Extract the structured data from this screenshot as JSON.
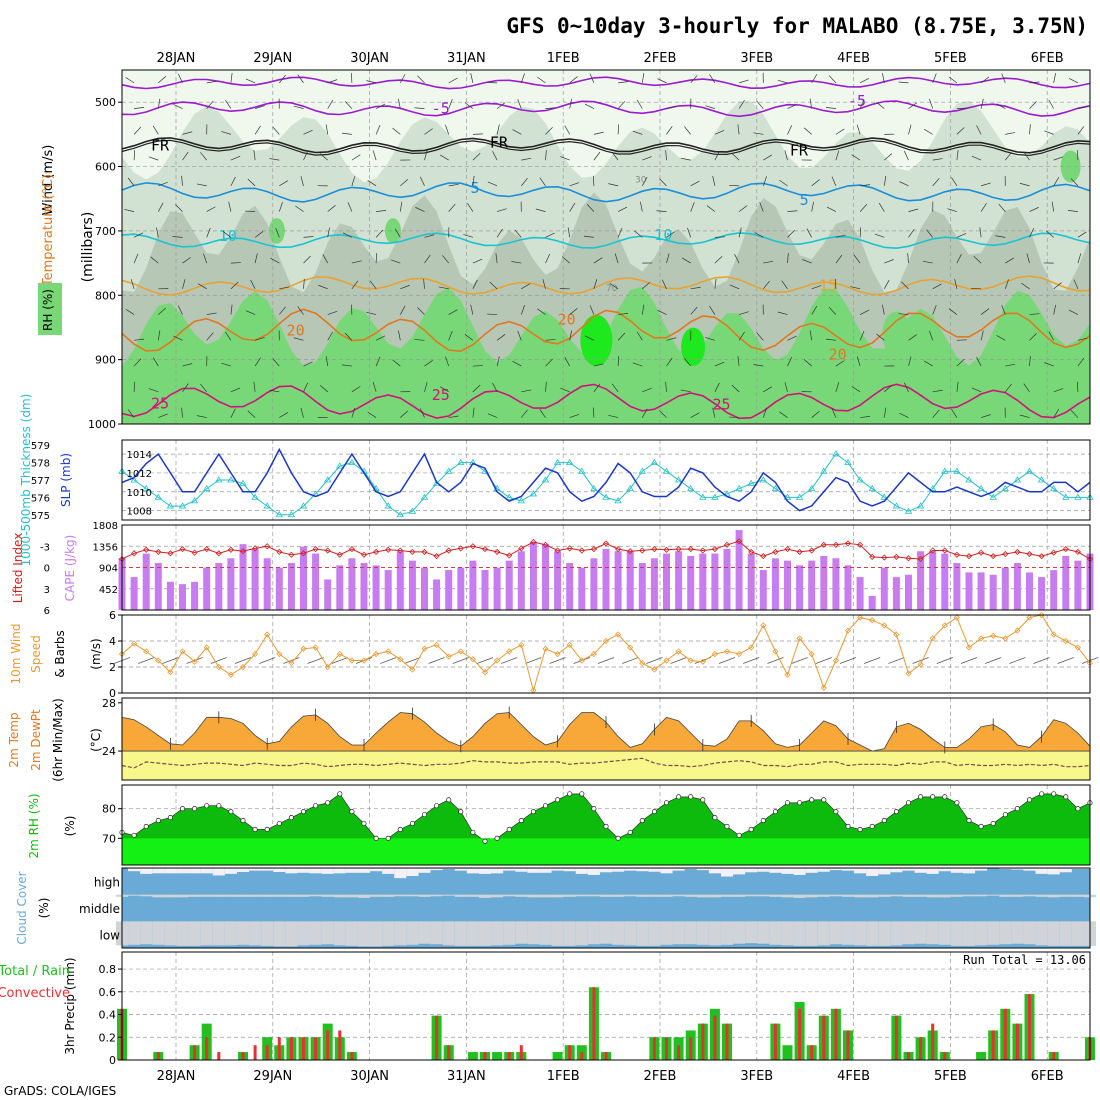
{
  "title": "GFS 0~10day 3-hourly for MALABO (8.75E, 3.75N)",
  "footer": "GrADS: COLA/IGES",
  "colors": {
    "rh_light": "#f0f8ee",
    "rh_mid": "#d2e2d2",
    "rh_gray": "#b6c7b6",
    "rh_green": "#78d878",
    "rh_bright": "#1ee81e",
    "purple": "#9b1bd0",
    "blue": "#1a8ed8",
    "cyan": "#1ac3d2",
    "orange": "#e8a234",
    "dkorange": "#e07820",
    "magenta": "#d0147a",
    "slp": "#1c36c8",
    "thick": "#26c0c8",
    "cape": "#c77cf0",
    "li": "#d02020",
    "wind": "#e89a34",
    "temp": "#f7a839",
    "dew": "#f7f78c",
    "rh2m_dark": "#0dbb0d",
    "rh2m_bright": "#14f014",
    "cloud": "#6aaad6",
    "cloud_light": "#f3f1f8",
    "precip_total": "#20c020",
    "precip_conv": "#e83030"
  },
  "chart_data": {
    "type": "meteogram",
    "x_labels_top": [
      "28JAN",
      "29JAN",
      "30JAN",
      "31JAN",
      "1FEB",
      "2FEB",
      "3FEB",
      "4FEB",
      "5FEB",
      "6FEB"
    ],
    "x_labels_bottom": [
      "28JAN",
      "29JAN",
      "30JAN",
      "31JAN",
      "1FEB",
      "2FEB",
      "3FEB",
      "4FEB",
      "5FEB",
      "6FEB"
    ],
    "time_step_hours": 3,
    "n_times": 81,
    "upper_air": {
      "ylabel": "(millibars)",
      "yticks": [
        500,
        600,
        700,
        800,
        900,
        1000
      ],
      "ylim": [
        450,
        1000
      ],
      "legend": {
        "rh": "RH (%)",
        "temperature": "Temperature (°C)",
        "wind": "Wind (m/s)"
      },
      "isotherm_labels": [
        {
          "text": "-5",
          "p": 510,
          "at": 0.32
        },
        {
          "text": "-5",
          "p": 498,
          "at": 0.75
        },
        {
          "text": "FR",
          "p": 567,
          "at": 0.03
        },
        {
          "text": "FR",
          "p": 563,
          "at": 0.38
        },
        {
          "text": "FR",
          "p": 575,
          "at": 0.69
        },
        {
          "text": "5",
          "p": 633,
          "at": 0.36
        },
        {
          "text": "5",
          "p": 652,
          "at": 0.7
        },
        {
          "text": "10",
          "p": 708,
          "at": 0.1
        },
        {
          "text": "10",
          "p": 706,
          "at": 0.55
        },
        {
          "text": "15",
          "p": 785,
          "at": 0.72
        },
        {
          "text": "20",
          "p": 855,
          "at": 0.17
        },
        {
          "text": "20",
          "p": 838,
          "at": 0.45
        },
        {
          "text": "20",
          "p": 892,
          "at": 0.73
        },
        {
          "text": "25",
          "p": 968,
          "at": 0.03
        },
        {
          "text": "25",
          "p": 955,
          "at": 0.32
        },
        {
          "text": "25",
          "p": 970,
          "at": 0.61
        }
      ],
      "rh_labels": [
        {
          "text": "30",
          "p": 625
        },
        {
          "text": "70",
          "p": 793
        }
      ]
    },
    "slp": {
      "label": "SLP (mb)",
      "yticks": [
        1008,
        1010,
        1012,
        1014
      ],
      "ylim": [
        1007,
        1015.5
      ],
      "values": [
        1011,
        1011.5,
        1013,
        1014,
        1012,
        1010,
        1010,
        1012,
        1014,
        1012,
        1010,
        1010,
        1012,
        1014.5,
        1012,
        1010,
        1009.5,
        1010,
        1012,
        1014,
        1012,
        1010,
        1009.5,
        1010,
        1012,
        1014,
        1011,
        1010,
        1011,
        1013,
        1012.5,
        1010,
        1009,
        1009.5,
        1011,
        1012.5,
        1012,
        1010,
        1009,
        1009.5,
        1011,
        1013,
        1012,
        1010,
        1009.5,
        1009.5,
        1010.5,
        1012.5,
        1012,
        1010.5,
        1009.5,
        1009,
        1010,
        1012,
        1011,
        1009,
        1008,
        1008.5,
        1010,
        1011.5,
        1011,
        1009,
        1008.5,
        1009,
        1010.5,
        1012,
        1011,
        1010,
        1010,
        1010.5,
        1010,
        1009.5,
        1010,
        1011,
        1010.5,
        1010,
        1010,
        1011,
        1011,
        1010,
        1011
      ]
    },
    "thickness": {
      "label": "1000-500mb Thickness (dm)",
      "yticks": [
        575,
        576,
        577,
        578,
        579
      ],
      "ylim": [
        574.7,
        579.3
      ],
      "values": [
        577.5,
        577,
        576.5,
        576,
        575.5,
        575.5,
        575.8,
        576.5,
        577,
        577,
        576.8,
        576,
        575.5,
        575,
        575,
        575.5,
        576.2,
        577,
        577.8,
        578,
        577.5,
        576.5,
        575.5,
        575,
        575.2,
        576,
        576.8,
        577.5,
        578,
        578,
        577.5,
        576.5,
        576,
        575.8,
        576.2,
        577,
        578,
        578,
        577.5,
        576.5,
        576,
        575.8,
        576.5,
        577.5,
        578,
        577.5,
        577,
        576.5,
        576,
        576,
        576.2,
        576.5,
        576.8,
        577,
        576.5,
        576,
        576,
        576.5,
        577.5,
        578.5,
        578,
        577,
        576.5,
        576,
        575.5,
        575.2,
        575.5,
        576.5,
        577.5,
        577.5,
        577,
        576.5,
        576,
        576.5,
        577,
        577.5,
        577,
        576.5,
        576,
        576,
        576
      ]
    },
    "cape": {
      "label": "CAPE (J/kg)",
      "yticks": [
        452,
        904,
        1356,
        1808
      ],
      "ylim": [
        0,
        1808
      ],
      "values": [
        1100,
        700,
        1200,
        1000,
        600,
        550,
        600,
        900,
        1000,
        1100,
        1400,
        1300,
        1100,
        900,
        1000,
        1350,
        1200,
        650,
        950,
        1100,
        1000,
        950,
        850,
        1250,
        1050,
        900,
        650,
        850,
        900,
        1050,
        850,
        900,
        1050,
        1250,
        1450,
        1400,
        1250,
        1000,
        900,
        1100,
        1300,
        1250,
        1250,
        1000,
        1100,
        1200,
        1250,
        1150,
        1200,
        1200,
        1300,
        1700,
        1200,
        850,
        1100,
        1050,
        950,
        1050,
        1150,
        1100,
        950,
        700,
        300,
        900,
        700,
        750,
        1250,
        1250,
        1200,
        1000,
        800,
        800,
        750,
        900,
        1000,
        800,
        700,
        850,
        1150,
        1050,
        1200
      ]
    },
    "lifted_index": {
      "label": "Lifted Index",
      "yticks": [
        -3,
        0,
        3,
        6
      ],
      "ylim": [
        6,
        -6
      ],
      "values": [
        -1.2,
        -2,
        -2.5,
        -2.2,
        -2,
        -2.6,
        -2.1,
        -2.6,
        -2,
        -2.5,
        -2.3,
        -2.7,
        -3,
        -2.2,
        -1.8,
        -2,
        -2.6,
        -2.4,
        -1.8,
        -2.6,
        -1.8,
        -2.2,
        -2.5,
        -2.4,
        -2.2,
        -2.2,
        -1.6,
        -2.4,
        -2.7,
        -3,
        -2.6,
        -2.2,
        -1.7,
        -2.7,
        -3.6,
        -3.2,
        -2.4,
        -2.7,
        -2.4,
        -2.6,
        -3.4,
        -2.6,
        -2.3,
        -2.4,
        -2.6,
        -2.5,
        -2.6,
        -2.6,
        -2.4,
        -2.6,
        -3.2,
        -3.7,
        -2.2,
        -1.6,
        -2.2,
        -2.6,
        -2.2,
        -2.4,
        -3.2,
        -3.2,
        -3.4,
        -3.2,
        -1.5,
        -1.4,
        -1.5,
        -1.3,
        -1.2,
        -2.4,
        -2.4,
        -1.8,
        -1.6,
        -2.1,
        -1.6,
        -1.9,
        -2.2,
        -1.9,
        -1.6,
        -2.1,
        -2.6,
        -2.2,
        -1.2
      ]
    },
    "wind10m": {
      "label": "10m Wind Speed & Barbs (m/s)",
      "yticks": [
        0,
        2,
        4,
        6
      ],
      "ylim": [
        0,
        6
      ],
      "values": [
        3,
        3.8,
        3.2,
        2.5,
        1.6,
        3.2,
        2.4,
        3.5,
        2,
        1.4,
        2,
        3,
        4.5,
        3,
        2.3,
        3.4,
        3.5,
        2,
        3,
        2.5,
        2.5,
        3,
        3.2,
        2.6,
        1.8,
        3.4,
        3.7,
        2.8,
        3.2,
        2.6,
        1.6,
        2.5,
        3.2,
        3.7,
        0.2,
        3.4,
        3,
        3.7,
        2.5,
        3,
        4,
        4.5,
        3.5,
        2.3,
        1.8,
        2.5,
        3.2,
        2.5,
        2.4,
        3,
        3.2,
        3,
        3.5,
        5.2,
        3.2,
        1.4,
        4.2,
        3,
        0.4,
        2.5,
        4.8,
        5.8,
        5.6,
        5.2,
        4.5,
        1.5,
        2.2,
        4.2,
        5.2,
        5.8,
        3.5,
        4.2,
        4.4,
        4.2,
        4.8,
        5.8,
        6,
        4.5,
        4,
        3.5,
        2.3
      ]
    },
    "temp2m": {
      "label": "2m Temp 2m DewPt (6hr Min/Max) (°C)",
      "yticks": [
        24,
        28
      ],
      "ylim": [
        21.6,
        28.4
      ],
      "temp": [
        26.8,
        26.6,
        26,
        25.3,
        24.6,
        24.5,
        25.5,
        26.8,
        26.8,
        26.7,
        26.3,
        25.3,
        24.6,
        24.8,
        26,
        26.9,
        27,
        26.3,
        25.2,
        24.5,
        24.5,
        25.5,
        26.4,
        27.2,
        27.1,
        26.4,
        25.5,
        24.8,
        24.4,
        25.2,
        26.3,
        27.1,
        27.2,
        26.2,
        25.2,
        24.5,
        24.8,
        26.2,
        27.2,
        27.2,
        26.4,
        25.2,
        24.3,
        24.6,
        25.8,
        26.8,
        26.5,
        25.5,
        24.5,
        24.4,
        25,
        26.5,
        26.5,
        25.7,
        24.6,
        24.3,
        24.5,
        25.5,
        26.5,
        26.1,
        25,
        24.5,
        24,
        24.2,
        26,
        26.3,
        25.8,
        25,
        24.3,
        24.3,
        25,
        26,
        26.2,
        25.6,
        24.5,
        24.3,
        25.2,
        26.6,
        26.3,
        25.5,
        24.4
      ],
      "dewpoint": [
        22.8,
        22.6,
        23.1,
        23,
        22.9,
        22.8,
        22.9,
        23,
        23,
        22.9,
        22.8,
        23,
        22.9,
        22.8,
        22.8,
        23,
        22.9,
        22.7,
        22.8,
        22.9,
        22.9,
        22.8,
        22.9,
        23,
        22.9,
        22.8,
        22.9,
        22.9,
        23,
        23.2,
        23.1,
        23.1,
        23,
        23,
        23.1,
        23.1,
        23.1,
        22.9,
        23,
        23,
        23.1,
        23.2,
        23.3,
        23.4,
        23,
        22.8,
        22.8,
        22.7,
        22.8,
        23,
        23.1,
        23.2,
        23.1,
        22.8,
        22.8,
        22.7,
        22.9,
        22.9,
        23.1,
        23.1,
        22.8,
        22.9,
        22.9,
        22.9,
        22.8,
        23,
        22.9,
        23.1,
        23.1,
        22.8,
        22.9,
        22.8,
        22.8,
        22.9,
        22.8,
        22.9,
        22.8,
        22.9,
        22.7,
        22.7,
        22.8
      ]
    },
    "rh2m": {
      "label": "2m RH (%)",
      "yticks": [
        70,
        80
      ],
      "ylim": [
        61,
        88
      ],
      "values": [
        72,
        71,
        74,
        76,
        77,
        80,
        80,
        81,
        81,
        79,
        76,
        73,
        73,
        75,
        77,
        79,
        81,
        82,
        85,
        79,
        75,
        70,
        70,
        73,
        75,
        78,
        81,
        83,
        79,
        72,
        69,
        70,
        73,
        76,
        79,
        81,
        83,
        85,
        85,
        80,
        74,
        70,
        72,
        76,
        79,
        82,
        84,
        84,
        83,
        77,
        74,
        71,
        73,
        76,
        79,
        82,
        82,
        83,
        83,
        79,
        74,
        73,
        74,
        76,
        79,
        82,
        84,
        84,
        84,
        82,
        76,
        74,
        75,
        78,
        80,
        83,
        85,
        85,
        84,
        80,
        82
      ]
    },
    "cloud_cover": {
      "label": "Cloud Cover (%)",
      "levels": [
        "high",
        "middle",
        "low"
      ],
      "high": [
        100,
        88,
        78,
        80,
        80,
        80,
        80,
        80,
        72,
        78,
        85,
        90,
        90,
        85,
        80,
        82,
        80,
        78,
        80,
        82,
        82,
        88,
        78,
        62,
        70,
        82,
        92,
        96,
        90,
        80,
        78,
        80,
        90,
        86,
        82,
        82,
        90,
        88,
        78,
        74,
        84,
        86,
        90,
        88,
        86,
        80,
        90,
        96,
        92,
        80,
        68,
        76,
        84,
        86,
        82,
        78,
        74,
        82,
        86,
        92,
        90,
        80,
        70,
        76,
        84,
        90,
        82,
        78,
        88,
        82,
        80,
        90,
        98,
        96,
        94,
        90,
        78,
        76,
        84,
        96,
        96
      ],
      "middle": [
        92,
        96,
        94,
        90,
        90,
        90,
        92,
        92,
        92,
        92,
        92,
        92,
        92,
        92,
        92,
        92,
        94,
        92,
        90,
        90,
        88,
        92,
        92,
        94,
        94,
        92,
        94,
        96,
        92,
        92,
        88,
        90,
        94,
        92,
        90,
        90,
        90,
        92,
        94,
        94,
        92,
        92,
        94,
        92,
        92,
        92,
        94,
        92,
        90,
        90,
        92,
        92,
        94,
        94,
        92,
        90,
        88,
        90,
        92,
        94,
        92,
        90,
        90,
        92,
        94,
        92,
        92,
        90,
        90,
        92,
        94,
        94,
        96,
        92,
        92,
        94,
        92,
        90,
        92,
        92,
        90
      ],
      "low": [
        10,
        12,
        14,
        12,
        10,
        8,
        8,
        10,
        10,
        10,
        12,
        10,
        8,
        6,
        6,
        10,
        12,
        14,
        10,
        8,
        6,
        6,
        8,
        10,
        12,
        16,
        14,
        10,
        8,
        8,
        8,
        10,
        12,
        16,
        14,
        12,
        8,
        8,
        10,
        14,
        16,
        12,
        10,
        8,
        8,
        12,
        14,
        14,
        12,
        10,
        12,
        16,
        18,
        16,
        12,
        10,
        8,
        8,
        10,
        14,
        12,
        10,
        8,
        8,
        10,
        14,
        16,
        14,
        12,
        8,
        8,
        10,
        12,
        14,
        16,
        14,
        10,
        8,
        8,
        8,
        8
      ]
    },
    "precip": {
      "label": "3hr Precip (mm)",
      "legend": [
        "Total / Rain",
        "Convective"
      ],
      "run_total": "Run Total = 13.06",
      "yticks": [
        0,
        0.2,
        0.4,
        0.6,
        0.8
      ],
      "ylim": [
        0,
        0.95
      ],
      "total": [
        0.45,
        0,
        0,
        0.07,
        0,
        0,
        0.13,
        0.32,
        0,
        0,
        0.07,
        0,
        0.2,
        0.13,
        0.2,
        0.2,
        0.2,
        0.32,
        0.2,
        0.07,
        0,
        0,
        0,
        0,
        0,
        0,
        0.39,
        0.13,
        0,
        0.07,
        0.07,
        0.07,
        0.07,
        0.07,
        0,
        0,
        0.07,
        0.13,
        0.13,
        0.64,
        0.07,
        0,
        0,
        0,
        0.2,
        0.2,
        0.2,
        0.26,
        0.32,
        0.45,
        0.32,
        0,
        0,
        0,
        0.32,
        0.13,
        0.51,
        0.13,
        0.39,
        0.45,
        0.26,
        0,
        0,
        0,
        0.39,
        0.07,
        0.2,
        0.26,
        0.07,
        0,
        0,
        0.07,
        0.26,
        0.45,
        0.32,
        0.58,
        0,
        0.07,
        0,
        0,
        0.2
      ],
      "convective": [
        0.45,
        0,
        0,
        0.07,
        0,
        0,
        0.13,
        0.2,
        0.07,
        0,
        0.07,
        0.13,
        0.13,
        0.2,
        0.2,
        0.2,
        0.2,
        0.26,
        0.26,
        0.07,
        0,
        0,
        0,
        0,
        0,
        0,
        0.39,
        0.13,
        0,
        0,
        0.07,
        0,
        0.07,
        0.13,
        0,
        0,
        0,
        0.13,
        0.07,
        0.64,
        0.07,
        0,
        0,
        0,
        0.2,
        0.2,
        0.13,
        0.2,
        0.32,
        0.39,
        0.32,
        0,
        0,
        0,
        0.32,
        0,
        0.45,
        0.13,
        0.39,
        0.45,
        0.26,
        0,
        0,
        0,
        0.39,
        0.07,
        0.2,
        0.32,
        0.07,
        0,
        0,
        0,
        0.26,
        0.45,
        0.32,
        0.58,
        0,
        0.07,
        0,
        0,
        0.2
      ]
    }
  }
}
